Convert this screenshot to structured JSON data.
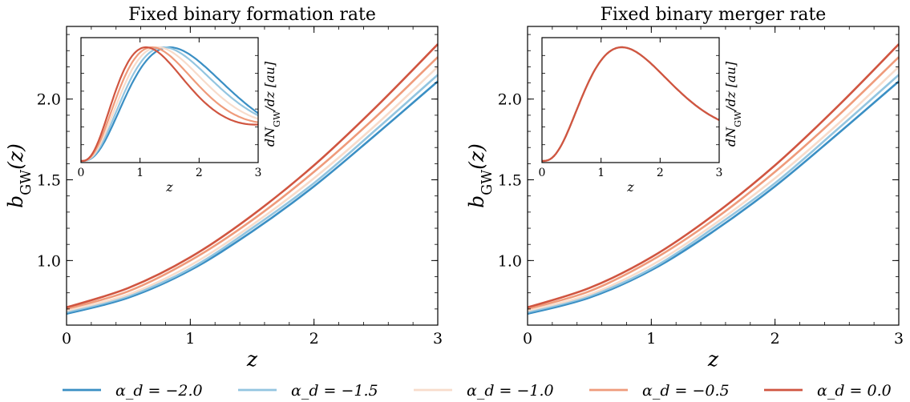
{
  "chart_data": [
    {
      "type": "line",
      "title": "Fixed binary formation rate",
      "xlabel": "z",
      "ylabel": "b_GW(z)",
      "xlim": [
        0,
        3
      ],
      "ylim": [
        0.6,
        2.45
      ],
      "xticks": [
        "0",
        "1",
        "2",
        "3"
      ],
      "yticks": [
        "1.0",
        "1.5",
        "2.0"
      ],
      "x": [
        0,
        0.5,
        1.0,
        1.5,
        2.0,
        2.5,
        3.0
      ],
      "series": [
        {
          "name": "α_d = −2.0",
          "color": "#3a8fc4",
          "values": [
            0.67,
            0.77,
            0.94,
            1.18,
            1.46,
            1.78,
            2.11
          ]
        },
        {
          "name": "α_d = −1.5",
          "color": "#93c5e0",
          "values": [
            0.68,
            0.78,
            0.95,
            1.2,
            1.48,
            1.81,
            2.15
          ]
        },
        {
          "name": "α_d = −1.0",
          "color": "#f8dccb",
          "values": [
            0.69,
            0.79,
            0.97,
            1.22,
            1.51,
            1.84,
            2.2
          ]
        },
        {
          "name": "α_d = −0.5",
          "color": "#ef9b7b",
          "values": [
            0.7,
            0.81,
            1.0,
            1.25,
            1.55,
            1.89,
            2.26
          ]
        },
        {
          "name": "α_d = 0.0",
          "color": "#d05540",
          "values": [
            0.71,
            0.83,
            1.02,
            1.28,
            1.59,
            1.95,
            2.34
          ]
        }
      ],
      "inset": {
        "type": "line",
        "xlabel": "z",
        "ylabel": "dN_GW/dz [au]",
        "xlim": [
          0,
          3
        ],
        "xticks": [
          "0",
          "1",
          "2",
          "3"
        ],
        "series_peaks_z": [
          1.5,
          1.4,
          1.3,
          1.2,
          1.1
        ],
        "series_end_values": [
          0.42,
          0.4,
          0.37,
          0.34,
          0.32
        ]
      }
    },
    {
      "type": "line",
      "title": "Fixed binary merger rate",
      "xlabel": "z",
      "ylabel": "b_GW(z)",
      "xlim": [
        0,
        3
      ],
      "ylim": [
        0.6,
        2.45
      ],
      "xticks": [
        "0",
        "1",
        "2",
        "3"
      ],
      "yticks": [
        "1.0",
        "1.5",
        "2.0"
      ],
      "x": [
        0,
        0.5,
        1.0,
        1.5,
        2.0,
        2.5,
        3.0
      ],
      "series": [
        {
          "name": "α_d = −2.0",
          "color": "#3a8fc4",
          "values": [
            0.67,
            0.77,
            0.94,
            1.18,
            1.46,
            1.78,
            2.11
          ]
        },
        {
          "name": "α_d = −1.5",
          "color": "#93c5e0",
          "values": [
            0.68,
            0.78,
            0.95,
            1.2,
            1.48,
            1.81,
            2.15
          ]
        },
        {
          "name": "α_d = −1.0",
          "color": "#f8dccb",
          "values": [
            0.69,
            0.79,
            0.97,
            1.22,
            1.51,
            1.84,
            2.2
          ]
        },
        {
          "name": "α_d = −0.5",
          "color": "#ef9b7b",
          "values": [
            0.7,
            0.81,
            1.0,
            1.25,
            1.55,
            1.89,
            2.26
          ]
        },
        {
          "name": "α_d = 0.0",
          "color": "#d05540",
          "values": [
            0.71,
            0.83,
            1.02,
            1.28,
            1.59,
            1.95,
            2.34
          ]
        }
      ],
      "inset": {
        "type": "line",
        "xlabel": "z",
        "ylabel": "dN_GW/dz [au]",
        "xlim": [
          0,
          3
        ],
        "xticks": [
          "0",
          "1",
          "2",
          "3"
        ],
        "series_peaks_z": [
          1.35,
          1.35,
          1.35,
          1.35,
          1.35
        ],
        "series_end_values": [
          0.36,
          0.36,
          0.36,
          0.36,
          0.36
        ]
      }
    }
  ],
  "legend": {
    "placement": "bottom",
    "entries": [
      "α_d = −2.0",
      "α_d = −1.5",
      "α_d = −1.0",
      "α_d = −0.5",
      "α_d = 0.0"
    ]
  }
}
